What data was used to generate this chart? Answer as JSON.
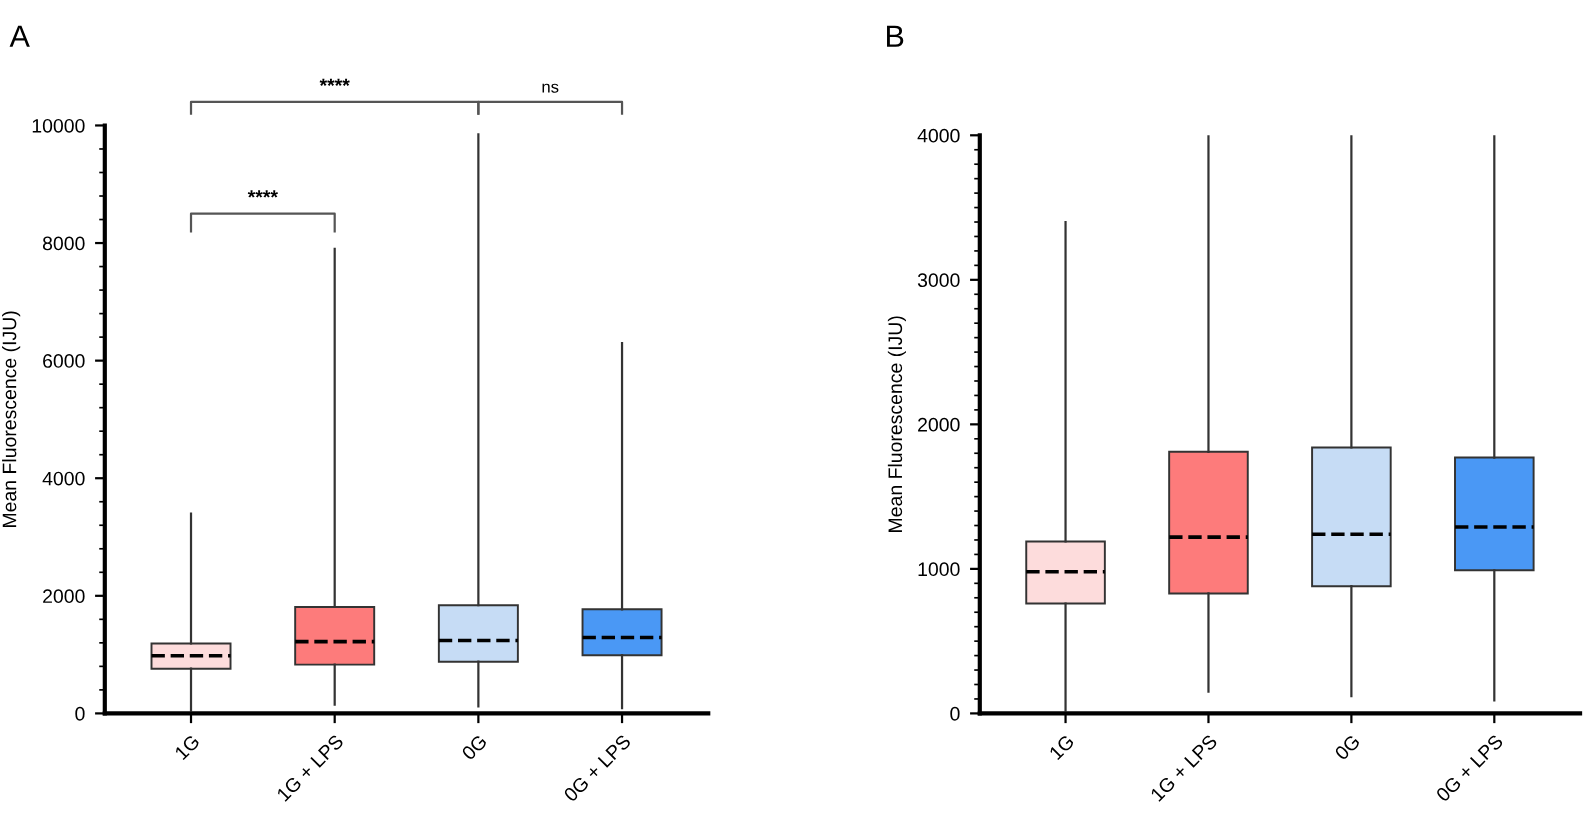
{
  "chart_data": [
    {
      "type": "box",
      "ylabel": "Mean Fluorescence (IJU)",
      "categories": [
        "1G",
        "1G + LPS",
        "0G",
        "0G + LPS"
      ],
      "colors": [
        "#fddcdc",
        "#fd7b7b",
        "#c6dcf5",
        "#4a98f5"
      ],
      "ylim": [
        0,
        10000
      ],
      "yticks": [
        0,
        2000,
        4000,
        6000,
        8000,
        10000
      ],
      "grid": false,
      "annotations": [
        "A",
        "****",
        "****",
        "ns"
      ],
      "boxes": [
        {
          "low": 50,
          "q1": 760,
          "median": 980,
          "q3": 1190,
          "high": 3400
        },
        {
          "low": 150,
          "q1": 830,
          "median": 1220,
          "q3": 1810,
          "high": 7900
        },
        {
          "low": 120,
          "q1": 880,
          "median": 1240,
          "q3": 1840,
          "high": 9850
        },
        {
          "low": 90,
          "q1": 990,
          "median": 1290,
          "q3": 1770,
          "high": 6300
        }
      ]
    },
    {
      "type": "box",
      "ylabel": "Mean Fluorescence (IJU)",
      "categories": [
        "1G",
        "1G + LPS",
        "0G",
        "0G + LPS"
      ],
      "colors": [
        "#fddcdc",
        "#fd7b7b",
        "#c6dcf5",
        "#4a98f5"
      ],
      "ylim": [
        0,
        4000
      ],
      "yticks": [
        0,
        1000,
        2000,
        3000,
        4000
      ],
      "grid": false,
      "annotations": [
        "B"
      ],
      "boxes": [
        {
          "low": 20,
          "q1": 760,
          "median": 980,
          "q3": 1190,
          "high": 3400
        },
        {
          "low": 150,
          "q1": 830,
          "median": 1220,
          "q3": 1810,
          "high": 4000
        },
        {
          "low": 120,
          "q1": 880,
          "median": 1240,
          "q3": 1840,
          "high": 4000
        },
        {
          "low": 90,
          "q1": 990,
          "median": 1290,
          "q3": 1770,
          "high": 4000
        }
      ]
    }
  ]
}
